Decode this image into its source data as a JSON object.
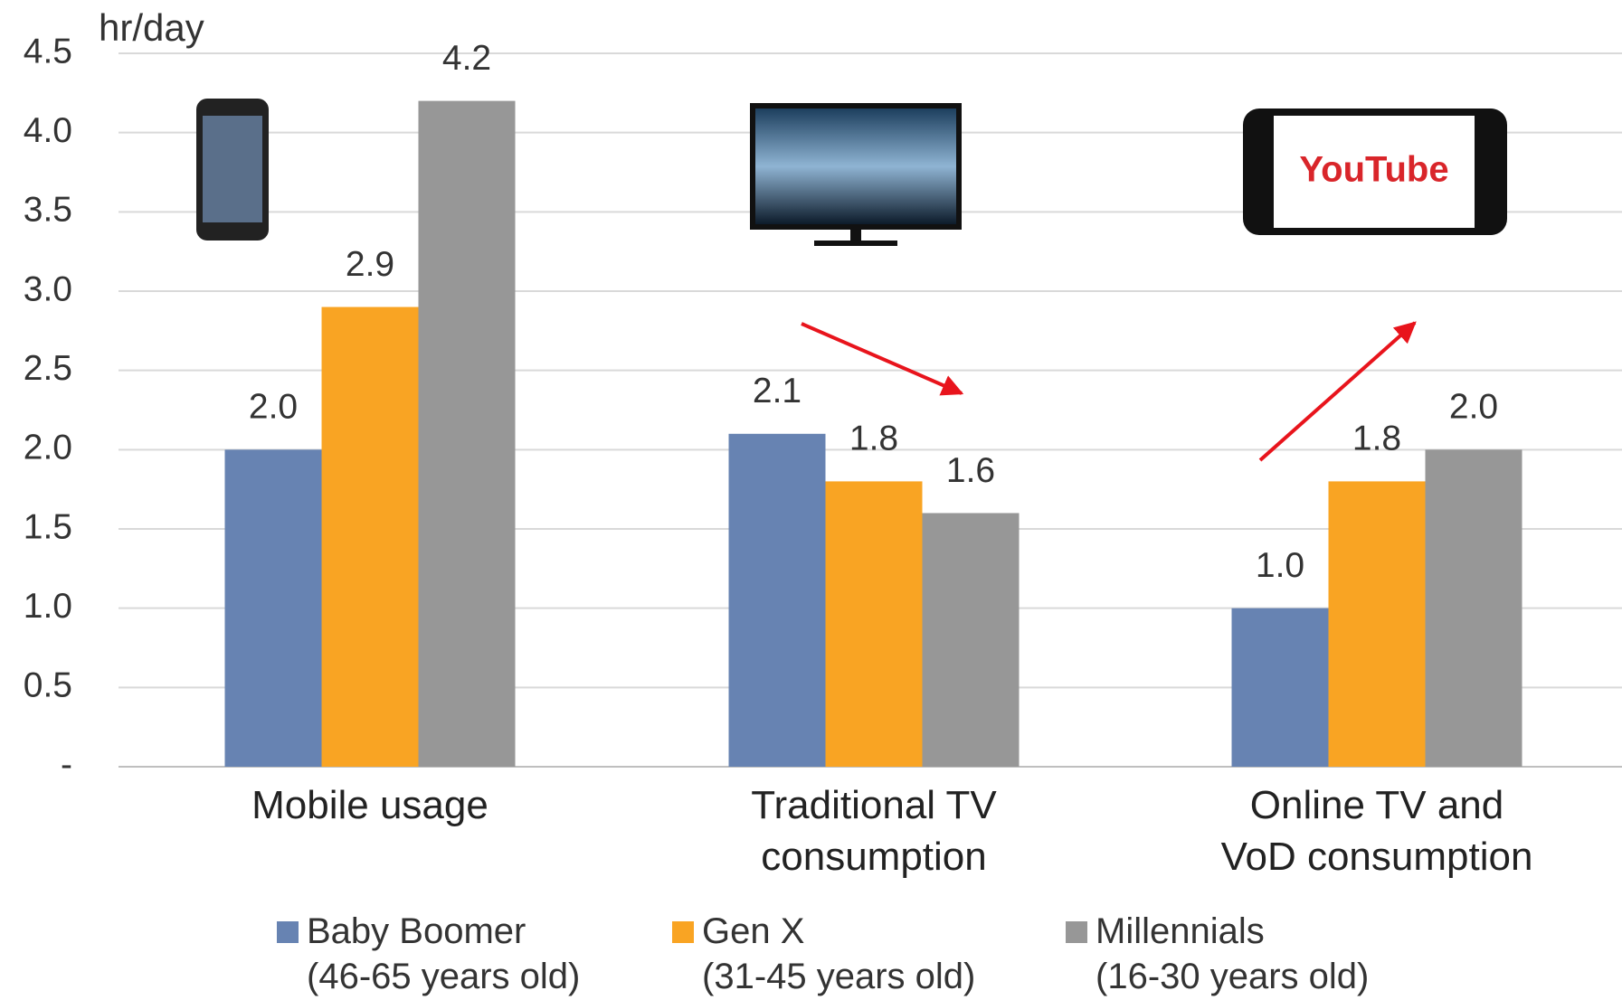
{
  "chart_data": {
    "type": "bar",
    "y_label": "hr/day",
    "categories": [
      "Mobile usage",
      "Traditional TV\nconsumption",
      "Online TV and\nVoD consumption"
    ],
    "series": [
      {
        "name": "Baby Boomer\n(46-65 years old)",
        "color": "#6783b2",
        "values": [
          2.0,
          2.1,
          1.0
        ],
        "value_labels": [
          "2.0",
          "2.1",
          "1.0"
        ]
      },
      {
        "name": "Gen X\n(31-45 years old)",
        "color": "#f9a423",
        "values": [
          2.9,
          1.8,
          1.8
        ],
        "value_labels": [
          "2.9",
          "1.8",
          "1.8"
        ]
      },
      {
        "name": "Millennials\n(16-30 years old)",
        "color": "#979797",
        "values": [
          4.2,
          1.6,
          2.0
        ],
        "value_labels": [
          "4.2",
          "1.6",
          "2.0"
        ]
      }
    ],
    "ylim": [
      0,
      4.5
    ],
    "yticks": [
      {
        "value": 0,
        "label": "-"
      },
      0.5,
      {
        "value": 1,
        "label": "1.0"
      },
      1.5,
      {
        "value": 2,
        "label": "2.0"
      },
      2.5,
      {
        "value": 3,
        "label": "3.0"
      },
      3.5,
      {
        "value": 4,
        "label": "4.0"
      },
      4.5
    ],
    "grid": true,
    "logo_text": "YouTube"
  }
}
